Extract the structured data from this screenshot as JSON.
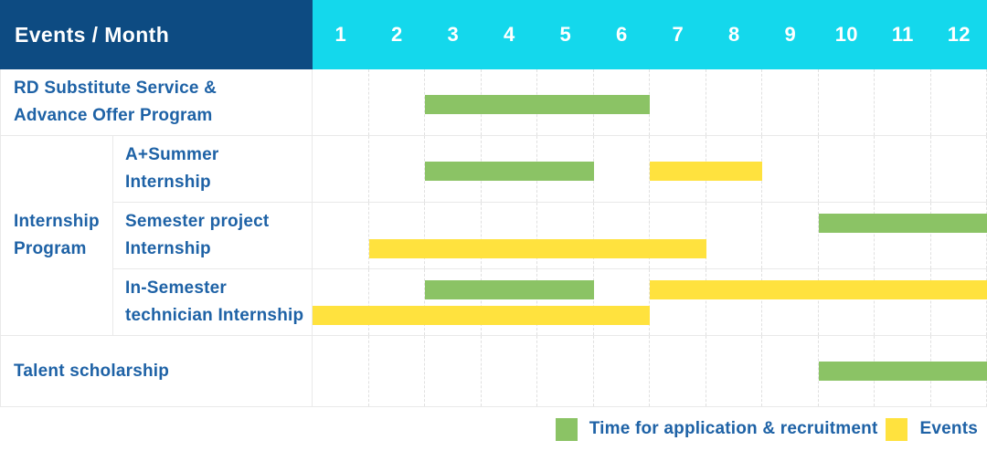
{
  "header": {
    "title": "Events / Month",
    "months": [
      "1",
      "2",
      "3",
      "4",
      "5",
      "6",
      "7",
      "8",
      "9",
      "10",
      "11",
      "12"
    ]
  },
  "labels": {
    "rd_substitute": "RD Substitute Service &\nAdvance Offer Program",
    "internship_group": "Internship\nProgram",
    "a_summer": "A+Summer\nInternship",
    "semester_project": "Semester project\nInternship",
    "in_semester": "In-Semester\ntechnician Internship",
    "talent_scholarship": "Talent scholarship"
  },
  "legend": {
    "application": "Time for application & recruitment",
    "events": "Events"
  },
  "colors": {
    "header_bg": "#0d4b82",
    "months_bg": "#14d8ec",
    "green": "#8bc365",
    "yellow": "#ffe23e",
    "label_text": "#1e62a6",
    "grid_border": "#e9e9e9",
    "month_gridline": "#e0e0e0"
  },
  "chart_data": {
    "type": "bar",
    "subtype": "gantt",
    "title": "Events / Month",
    "x_unit": "month",
    "x_ticks": [
      1,
      2,
      3,
      4,
      5,
      6,
      7,
      8,
      9,
      10,
      11,
      12
    ],
    "x_range": [
      1,
      12
    ],
    "grid": true,
    "legend_position": "bottom-right",
    "series_legend": [
      "Time for application & recruitment",
      "Events"
    ],
    "rows": [
      {
        "label": "RD Substitute Service & Advance Offer Program",
        "group": null,
        "bars": [
          {
            "series": "Time for application & recruitment",
            "start_month": 3,
            "end_month": 6,
            "lane": "center"
          }
        ]
      },
      {
        "label": "A+Summer Internship",
        "group": "Internship Program",
        "bars": [
          {
            "series": "Time for application & recruitment",
            "start_month": 3,
            "end_month": 5,
            "lane": "center"
          },
          {
            "series": "Events",
            "start_month": 7,
            "end_month": 8,
            "lane": "center"
          }
        ]
      },
      {
        "label": "Semester project Internship",
        "group": "Internship Program",
        "bars": [
          {
            "series": "Time for application & recruitment",
            "start_month": 10,
            "end_month": 12,
            "lane": "top"
          },
          {
            "series": "Events",
            "start_month": 2,
            "end_month": 7,
            "lane": "bottom"
          }
        ]
      },
      {
        "label": "In-Semester technician Internship",
        "group": "Internship Program",
        "bars": [
          {
            "series": "Time for application & recruitment",
            "start_month": 3,
            "end_month": 5,
            "lane": "top"
          },
          {
            "series": "Events",
            "start_month": 7,
            "end_month": 12,
            "lane": "top"
          },
          {
            "series": "Events",
            "start_month": 1,
            "end_month": 6,
            "lane": "bottom"
          }
        ]
      },
      {
        "label": "Talent scholarship",
        "group": null,
        "bars": [
          {
            "series": "Time for application & recruitment",
            "start_month": 10,
            "end_month": 12,
            "lane": "center"
          }
        ]
      }
    ]
  }
}
